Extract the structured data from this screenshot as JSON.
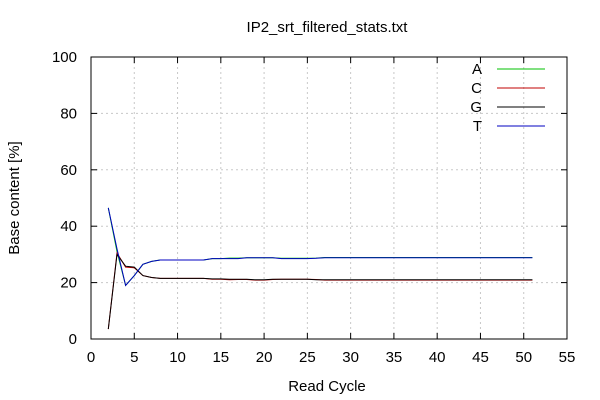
{
  "chart_data": {
    "type": "line",
    "title": "IP2_srt_filtered_stats.txt",
    "xlabel": "Read Cycle",
    "ylabel": "Base content [%]",
    "xlim": [
      0,
      55
    ],
    "ylim": [
      0,
      100
    ],
    "xticks": [
      "0",
      "5",
      "10",
      "15",
      "20",
      "25",
      "30",
      "35",
      "40",
      "45",
      "50",
      "55"
    ],
    "yticks": [
      "0",
      "20",
      "40",
      "60",
      "80",
      "100"
    ],
    "grid": true,
    "legend_position": "top-right",
    "x": [
      2,
      3,
      4,
      5,
      6,
      7,
      8,
      9,
      10,
      11,
      12,
      13,
      14,
      15,
      16,
      17,
      18,
      19,
      20,
      21,
      22,
      23,
      24,
      25,
      26,
      27,
      28,
      29,
      30,
      31,
      32,
      33,
      34,
      35,
      36,
      37,
      38,
      39,
      40,
      41,
      42,
      43,
      44,
      45,
      46,
      47,
      48,
      49,
      50,
      51
    ],
    "series": [
      {
        "name": "A",
        "color": "#00c000",
        "values": [
          46.5,
          31,
          19,
          22.5,
          26.5,
          27.5,
          28,
          28,
          28,
          28,
          28,
          28,
          28.5,
          28.5,
          28.7,
          28.7,
          28.8,
          28.8,
          28.8,
          28.8,
          28.6,
          28.6,
          28.6,
          28.6,
          28.7,
          28.9,
          28.9,
          28.9,
          28.9,
          28.9,
          28.9,
          28.9,
          28.9,
          28.9,
          28.9,
          28.9,
          28.9,
          28.9,
          28.9,
          28.9,
          28.9,
          28.9,
          28.9,
          28.9,
          28.9,
          28.9,
          28.9,
          28.9,
          28.9,
          28.9
        ]
      },
      {
        "name": "C",
        "color": "#c00000",
        "values": [
          3.5,
          30.5,
          25.5,
          25.3,
          22.5,
          21.8,
          21.5,
          21.5,
          21.5,
          21.5,
          21.5,
          21.5,
          21.2,
          21.2,
          21,
          21.1,
          21.1,
          20.9,
          20.9,
          21.1,
          21.2,
          21.2,
          21.2,
          21.2,
          21.1,
          20.9,
          20.9,
          20.9,
          20.9,
          20.9,
          20.9,
          20.9,
          20.9,
          20.9,
          20.9,
          20.9,
          20.9,
          20.9,
          20.9,
          20.9,
          20.9,
          20.9,
          20.9,
          20.9,
          20.9,
          20.9,
          20.9,
          20.9,
          20.9,
          20.9
        ]
      },
      {
        "name": "G",
        "color": "#000000",
        "values": [
          3.5,
          30,
          25.8,
          25.5,
          22.5,
          21.8,
          21.5,
          21.5,
          21.5,
          21.5,
          21.5,
          21.5,
          21.3,
          21.3,
          21.2,
          21.2,
          21.2,
          21,
          21,
          21.2,
          21.2,
          21.2,
          21.2,
          21.2,
          21,
          21,
          21,
          21,
          21,
          21,
          21,
          21,
          21,
          21,
          21,
          21,
          21,
          21,
          21,
          21,
          21,
          21,
          21,
          21,
          21,
          21,
          21,
          21,
          21,
          21
        ]
      },
      {
        "name": "T",
        "color": "#0000c0",
        "values": [
          46.5,
          32,
          19,
          22.5,
          26.5,
          27.5,
          28,
          28,
          28,
          28,
          28,
          28,
          28.5,
          28.5,
          28.5,
          28.5,
          28.8,
          28.8,
          28.8,
          28.8,
          28.5,
          28.5,
          28.5,
          28.5,
          28.6,
          28.8,
          28.8,
          28.8,
          28.8,
          28.8,
          28.8,
          28.8,
          28.8,
          28.8,
          28.8,
          28.8,
          28.8,
          28.8,
          28.8,
          28.8,
          28.8,
          28.8,
          28.8,
          28.8,
          28.8,
          28.8,
          28.8,
          28.8,
          28.8,
          28.8
        ]
      }
    ]
  }
}
